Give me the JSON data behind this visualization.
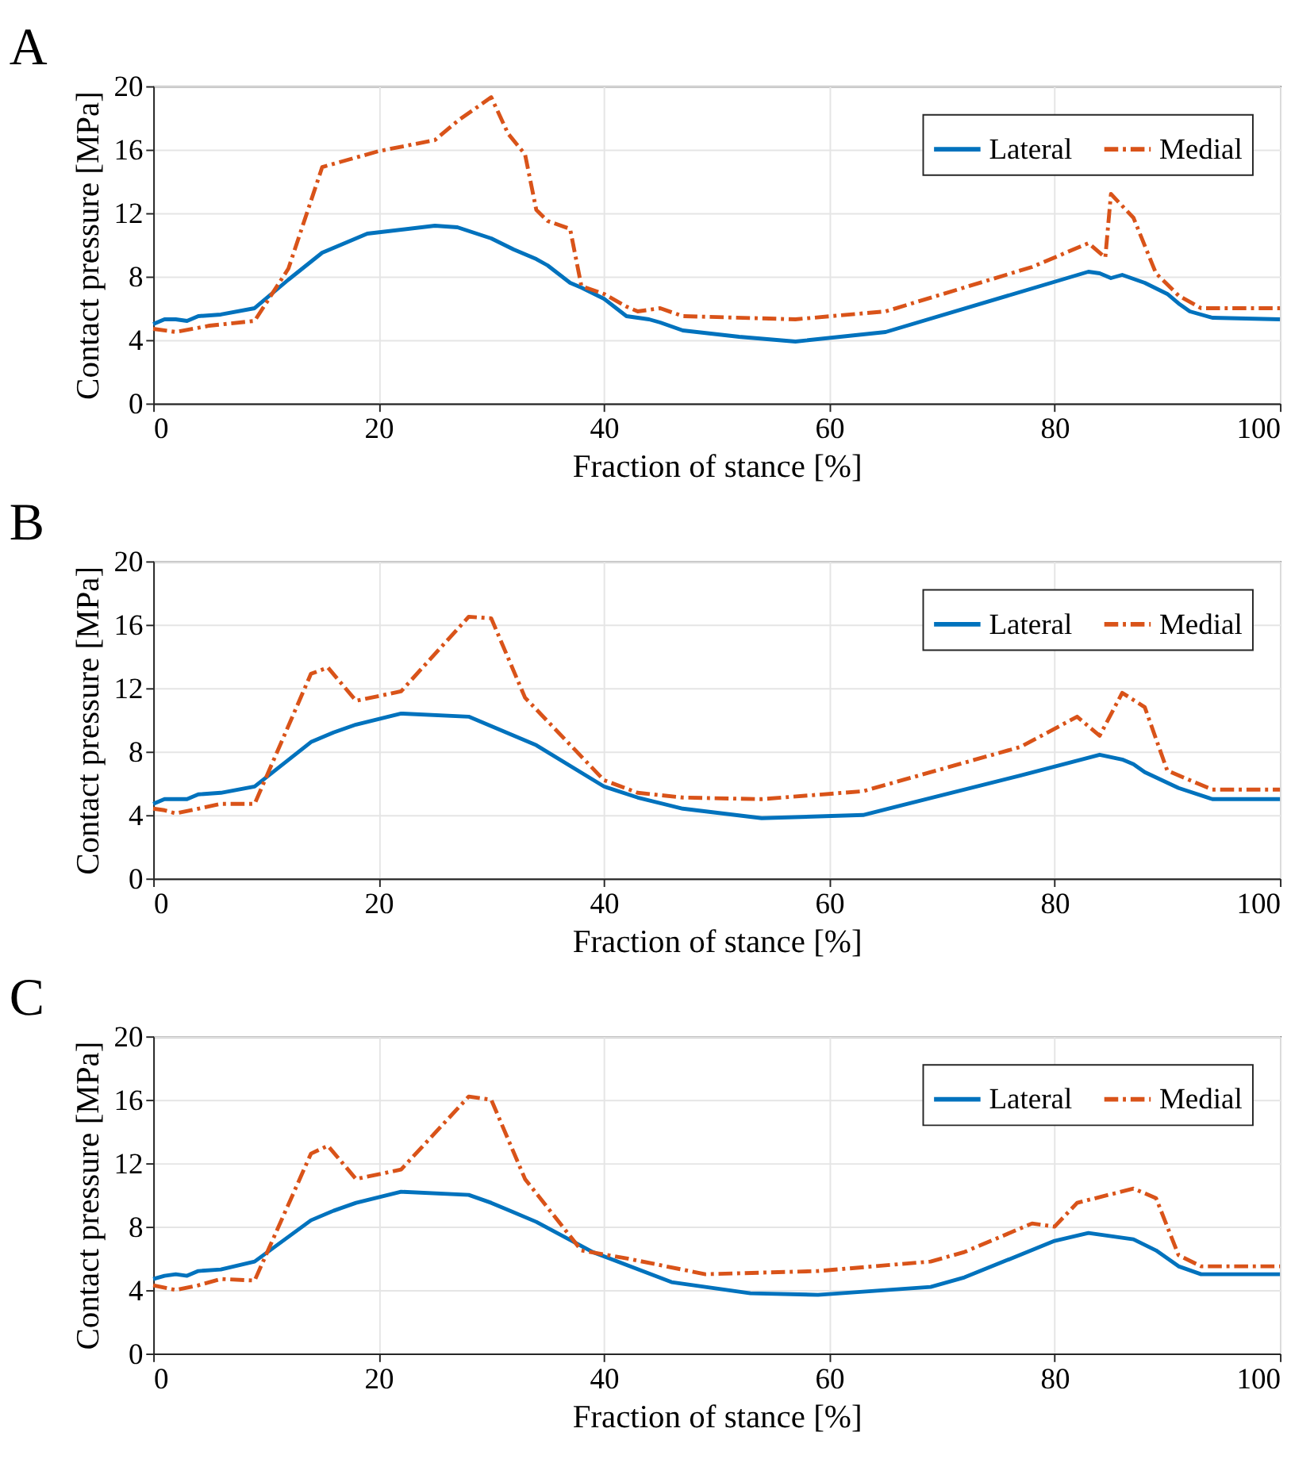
{
  "chart_data": [
    {
      "type": "line",
      "title": "A",
      "xlabel": "Fraction of stance [%]",
      "ylabel": "Contact pressure [MPa]",
      "xlim": [
        0,
        100
      ],
      "xticks": [
        0,
        20,
        40,
        60,
        80,
        100
      ],
      "ylim": [
        0,
        20
      ],
      "yticks": [
        0,
        4,
        8,
        12,
        16,
        20
      ],
      "grid": true,
      "legend": "top right",
      "series": [
        {
          "name": "Lateral",
          "color": "#0072bd",
          "line_style": "solid",
          "x": [
            0,
            1,
            2,
            3,
            4,
            6,
            9,
            12,
            15,
            19,
            25,
            27,
            30,
            32,
            34,
            35,
            37,
            38,
            40,
            42,
            43,
            44,
            45,
            47,
            52,
            57,
            65,
            83,
            84,
            85,
            86,
            88,
            90,
            91,
            92,
            94,
            100
          ],
          "values": [
            5.0,
            5.3,
            5.3,
            5.2,
            5.5,
            5.6,
            6.0,
            7.8,
            9.5,
            10.7,
            11.2,
            11.1,
            10.4,
            9.7,
            9.1,
            8.7,
            7.6,
            7.3,
            6.6,
            5.5,
            5.4,
            5.3,
            5.1,
            4.6,
            4.2,
            3.9,
            4.5,
            8.3,
            8.2,
            7.9,
            8.1,
            7.6,
            6.9,
            6.3,
            5.8,
            5.4,
            5.3
          ]
        },
        {
          "name": "Medial",
          "color": "#d95319",
          "line_style": "dashed",
          "x": [
            0,
            2,
            5,
            9,
            12,
            15,
            20,
            25,
            27,
            30,
            31.5,
            33,
            34,
            35,
            37,
            38,
            40,
            42,
            43,
            45,
            47,
            57,
            65,
            78,
            83,
            84.5,
            85,
            87,
            89,
            91,
            93,
            100
          ],
          "values": [
            4.7,
            4.5,
            4.9,
            5.2,
            8.5,
            14.9,
            15.9,
            16.6,
            17.8,
            19.3,
            17.0,
            15.7,
            12.2,
            11.5,
            11.0,
            7.4,
            6.9,
            6.1,
            5.8,
            6.0,
            5.5,
            5.3,
            5.8,
            8.6,
            10.1,
            9.2,
            13.2,
            11.7,
            8.2,
            6.8,
            6.0,
            6.0
          ]
        }
      ]
    },
    {
      "type": "line",
      "title": "B",
      "xlabel": "Fraction of stance [%]",
      "ylabel": "Contact pressure [MPa]",
      "xlim": [
        0,
        100
      ],
      "xticks": [
        0,
        20,
        40,
        60,
        80,
        100
      ],
      "ylim": [
        0,
        20
      ],
      "yticks": [
        0,
        4,
        8,
        12,
        16,
        20
      ],
      "grid": true,
      "legend": "top right",
      "series": [
        {
          "name": "Lateral",
          "color": "#0072bd",
          "line_style": "solid",
          "x": [
            0,
            1,
            2,
            3,
            4,
            6,
            9,
            14,
            16,
            18,
            22,
            28,
            30,
            34,
            40,
            43,
            47,
            54,
            63,
            77,
            84,
            86,
            87,
            88,
            91,
            94,
            100
          ],
          "values": [
            4.7,
            5.0,
            5.0,
            5.0,
            5.3,
            5.4,
            5.8,
            8.6,
            9.2,
            9.7,
            10.4,
            10.2,
            9.6,
            8.4,
            5.8,
            5.1,
            4.4,
            3.8,
            4.0,
            6.5,
            7.8,
            7.5,
            7.2,
            6.7,
            5.7,
            5.0,
            5.0
          ]
        },
        {
          "name": "Medial",
          "color": "#d95319",
          "line_style": "dashed",
          "x": [
            0,
            1,
            2,
            4,
            6,
            9,
            14,
            15.5,
            18,
            22,
            28,
            30,
            33,
            40,
            43,
            47,
            54,
            63,
            77,
            82,
            84,
            86,
            88,
            90,
            94,
            100
          ],
          "values": [
            4.4,
            4.3,
            4.1,
            4.4,
            4.7,
            4.7,
            12.9,
            13.3,
            11.2,
            11.8,
            16.5,
            16.4,
            11.4,
            6.2,
            5.4,
            5.1,
            5.0,
            5.5,
            8.3,
            10.2,
            9.0,
            11.7,
            10.8,
            6.8,
            5.6,
            5.6
          ]
        }
      ]
    },
    {
      "type": "line",
      "title": "C",
      "xlabel": "Fraction of stance [%]",
      "ylabel": "Contact pressure [MPa]",
      "xlim": [
        0,
        100
      ],
      "xticks": [
        0,
        20,
        40,
        60,
        80,
        100
      ],
      "ylim": [
        0,
        20
      ],
      "yticks": [
        0,
        4,
        8,
        12,
        16,
        20
      ],
      "grid": true,
      "legend": "top right",
      "series": [
        {
          "name": "Lateral",
          "color": "#0072bd",
          "line_style": "solid",
          "x": [
            0,
            1,
            2,
            3,
            4,
            6,
            9,
            14,
            16,
            18,
            22,
            28,
            30,
            34,
            39,
            46,
            48,
            53,
            59,
            69,
            72,
            80,
            83,
            87,
            89,
            91,
            93,
            100
          ],
          "values": [
            4.7,
            4.9,
            5.0,
            4.9,
            5.2,
            5.3,
            5.8,
            8.4,
            9.0,
            9.5,
            10.2,
            10.0,
            9.5,
            8.3,
            6.4,
            4.5,
            4.3,
            3.8,
            3.7,
            4.2,
            4.8,
            7.1,
            7.6,
            7.2,
            6.5,
            5.5,
            5.0,
            5.0
          ]
        },
        {
          "name": "Medial",
          "color": "#d95319",
          "line_style": "dashed",
          "x": [
            0,
            2,
            4,
            6,
            9,
            14,
            15.5,
            18,
            22,
            28,
            30,
            33,
            38,
            42,
            49,
            59,
            69,
            72,
            78,
            80,
            82,
            87,
            89,
            91,
            93,
            100
          ],
          "values": [
            4.3,
            4.0,
            4.3,
            4.7,
            4.6,
            12.6,
            13.1,
            11.0,
            11.6,
            16.2,
            16.0,
            11.0,
            6.5,
            6.0,
            5.0,
            5.2,
            5.8,
            6.4,
            8.2,
            8.0,
            9.5,
            10.4,
            9.8,
            6.2,
            5.5,
            5.5
          ]
        }
      ]
    }
  ]
}
